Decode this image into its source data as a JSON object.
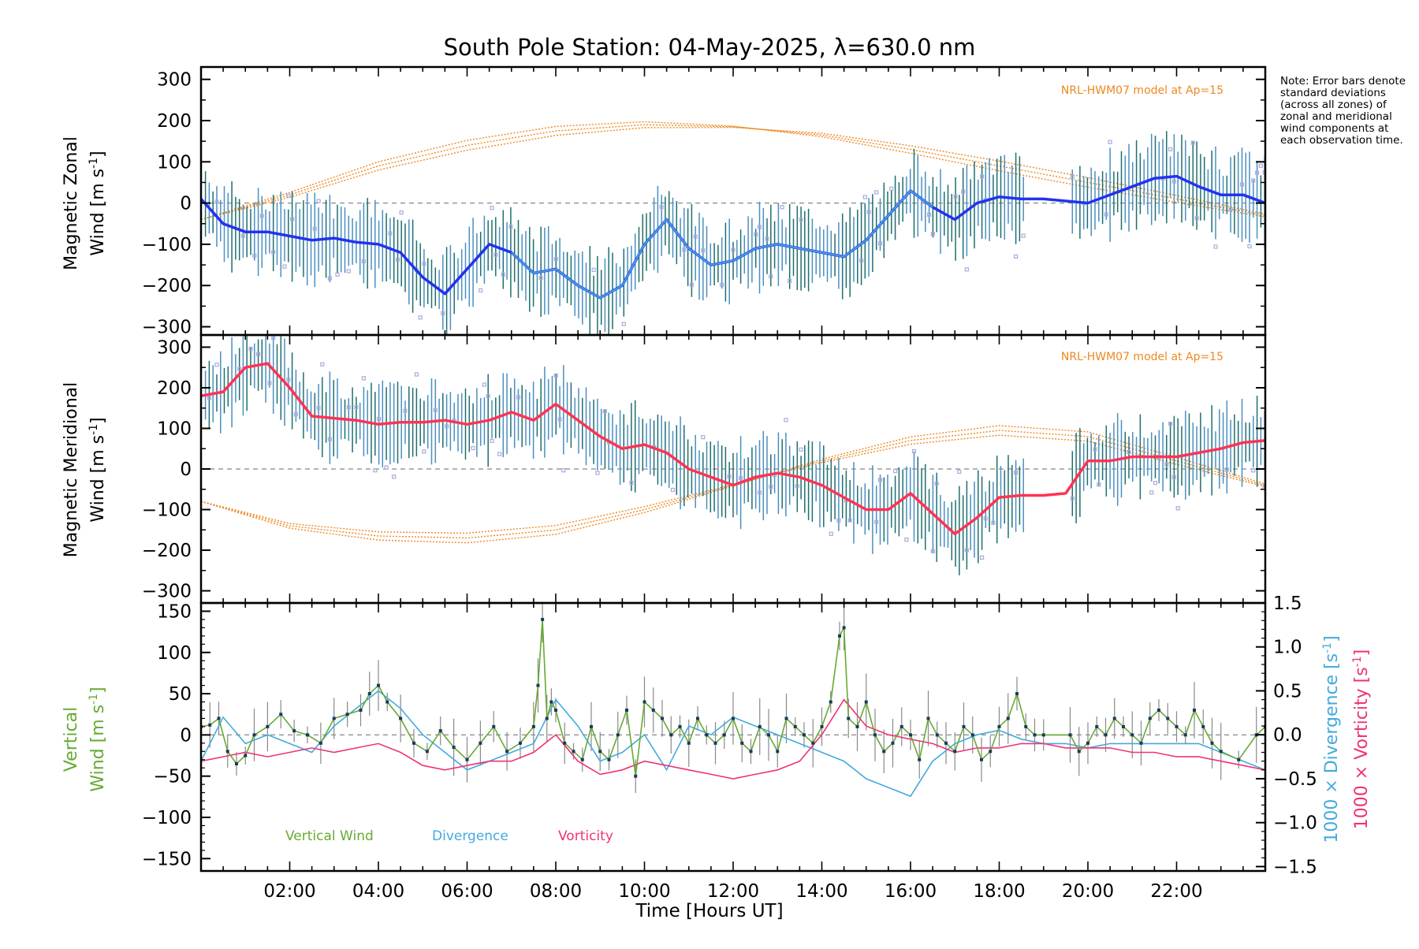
{
  "title": "South Pole Station: 04-May-2025, λ=630.0 nm",
  "note": "Note: Error bars denote standard deviations (across all zones) of zonal and meridional wind components at each observation time.",
  "colors": {
    "zonal": "#2233ee",
    "zonal_light": "#4aa8dd",
    "meridional": "#ff3355",
    "model": "#ee8822",
    "vertical": "#66aa33",
    "divergence": "#44aadd",
    "vorticity": "#ee3377",
    "error_bar": "#1f6e6e",
    "scatter": "#aaaadd",
    "axis": "#000000"
  },
  "chart_data": [
    {
      "id": "zonal",
      "type": "line",
      "ylabel_line1": "Magnetic Zonal",
      "ylabel_line2": "Wind [m s",
      "ylabel_sup": "-1",
      "ylabel_end": "]",
      "xlim": [
        0,
        24
      ],
      "ylim": [
        -320,
        330
      ],
      "yticks": [
        -300,
        -200,
        -100,
        0,
        100,
        200,
        300
      ],
      "model_label": "NRL-HWM07 model at Ap=15",
      "series_x": [
        0,
        0.5,
        1,
        1.5,
        2,
        2.5,
        3,
        3.5,
        4,
        4.5,
        5,
        5.5,
        6,
        6.5,
        7,
        7.5,
        8,
        8.5,
        9,
        9.5,
        10,
        10.5,
        11,
        11.5,
        12,
        12.5,
        13,
        13.5,
        14,
        14.5,
        15,
        15.5,
        16,
        16.5,
        17,
        17.5,
        18,
        18.5,
        19,
        19.5,
        20,
        20.5,
        21,
        21.5,
        22,
        22.5,
        23,
        23.5,
        24
      ],
      "series": [
        10,
        -50,
        -70,
        -70,
        -80,
        -90,
        -85,
        -95,
        -100,
        -120,
        -180,
        -220,
        -160,
        -100,
        -120,
        -170,
        -160,
        -200,
        -230,
        -200,
        -100,
        -40,
        -110,
        -150,
        -140,
        -110,
        -100,
        -110,
        -120,
        -130,
        -90,
        -30,
        30,
        -10,
        -40,
        0,
        15,
        10,
        10,
        5,
        0,
        20,
        40,
        60,
        65,
        40,
        20,
        20,
        0
      ],
      "model_x": [
        0,
        2,
        4,
        6,
        8,
        10,
        12,
        14,
        16,
        18,
        20,
        22,
        24
      ],
      "model": [
        -40,
        20,
        90,
        140,
        175,
        190,
        185,
        165,
        130,
        90,
        50,
        10,
        -30
      ]
    },
    {
      "id": "meridional",
      "type": "line",
      "ylabel_line1": "Magnetic Meridional",
      "ylabel_line2": "Wind [m s",
      "ylabel_sup": "-1",
      "ylabel_end": "]",
      "xlim": [
        0,
        24
      ],
      "ylim": [
        -330,
        330
      ],
      "yticks": [
        -300,
        -200,
        -100,
        0,
        100,
        200,
        300
      ],
      "model_label": "NRL-HWM07 model at Ap=15",
      "series_x": [
        0,
        0.5,
        1,
        1.5,
        2,
        2.5,
        3,
        3.5,
        4,
        4.5,
        5,
        5.5,
        6,
        6.5,
        7,
        7.5,
        8,
        8.5,
        9,
        9.5,
        10,
        10.5,
        11,
        11.5,
        12,
        12.5,
        13,
        13.5,
        14,
        14.5,
        15,
        15.5,
        16,
        16.5,
        17,
        17.5,
        18,
        18.5,
        19,
        19.5,
        20,
        20.5,
        21,
        21.5,
        22,
        22.5,
        23,
        23.5,
        24
      ],
      "series": [
        180,
        190,
        250,
        260,
        200,
        130,
        125,
        120,
        110,
        115,
        115,
        120,
        110,
        120,
        140,
        120,
        160,
        120,
        80,
        50,
        60,
        40,
        0,
        -20,
        -40,
        -20,
        -10,
        -20,
        -40,
        -70,
        -100,
        -100,
        -60,
        -110,
        -160,
        -120,
        -70,
        -65,
        -65,
        -60,
        20,
        20,
        30,
        30,
        30,
        40,
        50,
        65,
        70
      ],
      "model_x": [
        0,
        2,
        4,
        6,
        8,
        10,
        12,
        14,
        16,
        18,
        20,
        22,
        24
      ],
      "model": [
        -80,
        -140,
        -165,
        -170,
        -150,
        -100,
        -40,
        20,
        70,
        95,
        80,
        20,
        -40
      ]
    },
    {
      "id": "vertical",
      "type": "line",
      "ylabel_line1": "Vertical",
      "ylabel_line2": "Wind [m s",
      "ylabel_sup": "-1",
      "ylabel_end": "]",
      "right_label_div": "1000 × Divergence [s",
      "right_label_vor": "1000 × Vorticity [s",
      "right_sup": "-1",
      "right_end": "]",
      "xlim": [
        0,
        24
      ],
      "ylim": [
        -165,
        160
      ],
      "yticks": [
        -150,
        -100,
        -50,
        0,
        50,
        100,
        150
      ],
      "y2lim": [
        -1.55,
        1.5
      ],
      "y2ticks": [
        -1.5,
        -1.0,
        -0.5,
        0.0,
        0.5,
        1.0,
        1.5
      ],
      "y2ticklabels": [
        "−1.5",
        "−1.0",
        "−0.5",
        "0.0",
        "0.5",
        "1.0",
        "1.5"
      ],
      "x_ticks": [
        2,
        4,
        6,
        8,
        10,
        12,
        14,
        16,
        18,
        20,
        22
      ],
      "x_ticklabels": [
        "02:00",
        "04:00",
        "06:00",
        "08:00",
        "10:00",
        "12:00",
        "14:00",
        "16:00",
        "18:00",
        "20:00",
        "22:00"
      ],
      "xlabel": "Time [Hours UT]",
      "legend": [
        "Vertical Wind",
        "Divergence",
        "Vorticity"
      ],
      "vertical_x": [
        0,
        0.2,
        0.4,
        0.6,
        0.8,
        1.0,
        1.2,
        1.5,
        1.8,
        2.1,
        2.4,
        2.7,
        3.0,
        3.3,
        3.6,
        3.8,
        4.0,
        4.2,
        4.5,
        4.8,
        5.1,
        5.4,
        5.7,
        6.0,
        6.3,
        6.6,
        6.9,
        7.2,
        7.5,
        7.6,
        7.7,
        7.8,
        7.9,
        8.0,
        8.2,
        8.4,
        8.6,
        8.8,
        9.0,
        9.2,
        9.4,
        9.6,
        9.8,
        10.0,
        10.2,
        10.4,
        10.6,
        10.8,
        11.0,
        11.2,
        11.4,
        11.6,
        11.8,
        12.0,
        12.2,
        12.4,
        12.6,
        12.8,
        13.0,
        13.2,
        13.4,
        13.6,
        13.8,
        14.0,
        14.2,
        14.4,
        14.5,
        14.6,
        14.8,
        15.0,
        15.2,
        15.4,
        15.6,
        15.8,
        16.0,
        16.2,
        16.4,
        16.6,
        16.8,
        17.0,
        17.2,
        17.4,
        17.6,
        17.8,
        18.0,
        18.2,
        18.4,
        18.6,
        18.8,
        19.0,
        19.6,
        19.8,
        20.0,
        20.2,
        20.4,
        20.6,
        20.8,
        21.0,
        21.2,
        21.4,
        21.6,
        21.8,
        22.0,
        22.2,
        22.4,
        22.6,
        22.8,
        23.0,
        23.4,
        23.8,
        24.0
      ],
      "vertical": [
        10,
        12,
        20,
        -20,
        -35,
        -25,
        0,
        10,
        25,
        5,
        0,
        -10,
        20,
        25,
        30,
        50,
        60,
        40,
        20,
        -10,
        -20,
        5,
        -15,
        -30,
        -10,
        10,
        -20,
        -10,
        10,
        60,
        140,
        20,
        40,
        30,
        -10,
        -20,
        -30,
        10,
        -20,
        -30,
        0,
        30,
        -50,
        40,
        30,
        20,
        0,
        10,
        -10,
        20,
        0,
        -10,
        0,
        20,
        -10,
        -20,
        10,
        0,
        -20,
        20,
        10,
        0,
        -10,
        10,
        40,
        120,
        130,
        20,
        10,
        40,
        0,
        -20,
        -10,
        10,
        0,
        -30,
        20,
        0,
        -10,
        -20,
        10,
        0,
        -30,
        -20,
        10,
        20,
        50,
        10,
        0,
        0,
        0,
        -20,
        -10,
        10,
        0,
        20,
        10,
        0,
        -10,
        20,
        30,
        20,
        10,
        0,
        30,
        10,
        -10,
        -20,
        -30,
        0,
        10
      ],
      "divergence_x": [
        0,
        0.5,
        1,
        1.5,
        2,
        2.5,
        3,
        3.5,
        4,
        4.5,
        5,
        5.5,
        6,
        6.5,
        7,
        7.5,
        8,
        8.5,
        9,
        9.5,
        10,
        10.5,
        11,
        11.5,
        12,
        12.5,
        13,
        13.5,
        14,
        14.5,
        15,
        15.5,
        16,
        16.5,
        17,
        17.5,
        18,
        18.5,
        19,
        19.5,
        20,
        20.5,
        21,
        21.5,
        22,
        22.5,
        23,
        23.5,
        24
      ],
      "divergence": [
        -0.3,
        0.2,
        -0.1,
        0.0,
        -0.1,
        -0.2,
        0.1,
        0.3,
        0.5,
        0.3,
        0.0,
        -0.2,
        -0.4,
        -0.3,
        -0.2,
        -0.1,
        0.4,
        0.1,
        -0.3,
        -0.2,
        0.0,
        -0.4,
        0.1,
        0.0,
        0.2,
        0.1,
        0.0,
        -0.1,
        -0.2,
        -0.3,
        -0.5,
        -0.6,
        -0.7,
        -0.3,
        -0.1,
        0.0,
        0.05,
        -0.05,
        -0.1,
        -0.1,
        -0.15,
        -0.1,
        -0.1,
        -0.1,
        -0.1,
        -0.1,
        -0.2,
        -0.3,
        -0.4
      ],
      "vorticity_x": [
        0,
        0.5,
        1,
        1.5,
        2,
        2.5,
        3,
        3.5,
        4,
        4.5,
        5,
        5.5,
        6,
        6.5,
        7,
        7.5,
        8,
        8.5,
        9,
        9.5,
        10,
        10.5,
        11,
        11.5,
        12,
        12.5,
        13,
        13.5,
        14,
        14.5,
        15,
        15.5,
        16,
        16.5,
        17,
        17.5,
        18,
        18.5,
        19,
        19.5,
        20,
        20.5,
        21,
        21.5,
        22,
        22.5,
        23,
        23.5,
        24
      ],
      "vorticity": [
        -0.3,
        -0.25,
        -0.2,
        -0.25,
        -0.2,
        -0.15,
        -0.2,
        -0.15,
        -0.1,
        -0.2,
        -0.35,
        -0.4,
        -0.35,
        -0.3,
        -0.3,
        -0.2,
        0.0,
        -0.3,
        -0.45,
        -0.4,
        -0.3,
        -0.35,
        -0.4,
        -0.45,
        -0.5,
        -0.45,
        -0.4,
        -0.3,
        0.0,
        0.4,
        0.1,
        0.0,
        -0.05,
        -0.1,
        -0.2,
        -0.15,
        -0.15,
        -0.1,
        -0.1,
        -0.15,
        -0.15,
        -0.15,
        -0.2,
        -0.2,
        -0.25,
        -0.25,
        -0.3,
        -0.35,
        -0.4
      ]
    }
  ]
}
